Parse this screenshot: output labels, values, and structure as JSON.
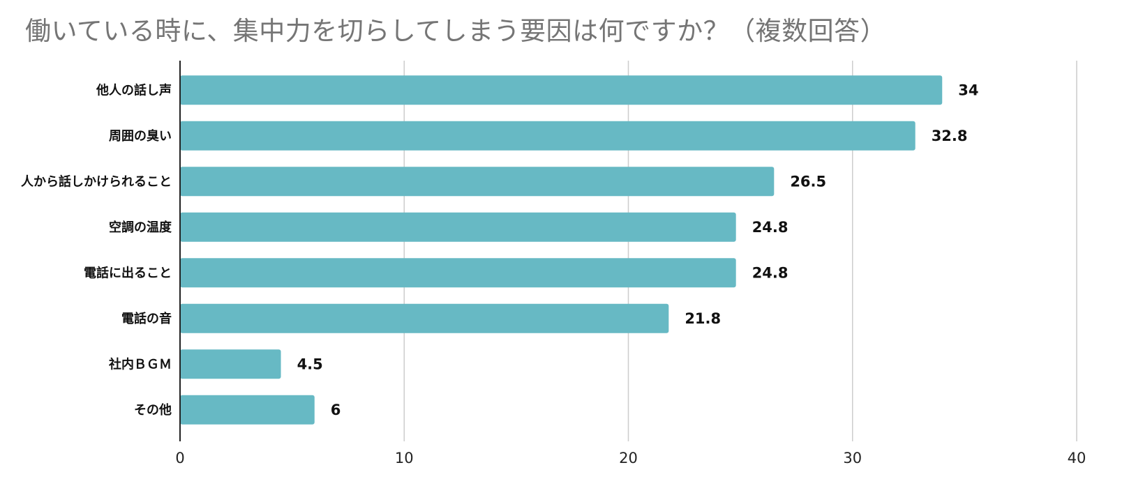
{
  "chart_data": {
    "type": "bar",
    "orientation": "horizontal",
    "title": "働いている時に、集中力を切らしてしまう要因は何ですか？（複数回答）",
    "categories": [
      "他人の話し声",
      "周囲の臭い",
      "人から話しかけられること",
      "空調の温度",
      "電話に出ること",
      "電話の音",
      "社内ＢＧＭ",
      "その他"
    ],
    "values": [
      34,
      32.8,
      26.5,
      24.8,
      24.8,
      21.8,
      4.5,
      6
    ],
    "value_labels": [
      "34",
      "32.8",
      "26.5",
      "24.8",
      "24.8",
      "21.8",
      "4.5",
      "6"
    ],
    "xlim": [
      0,
      40
    ],
    "xticks": [
      "0",
      "10",
      "20",
      "30",
      "40"
    ],
    "grid": "vertical",
    "legend": "none",
    "colors": {
      "bar": "#67b9c4",
      "grid": "#cccccc",
      "axis": "#222222",
      "title": "#757575",
      "text": "#111111"
    }
  }
}
